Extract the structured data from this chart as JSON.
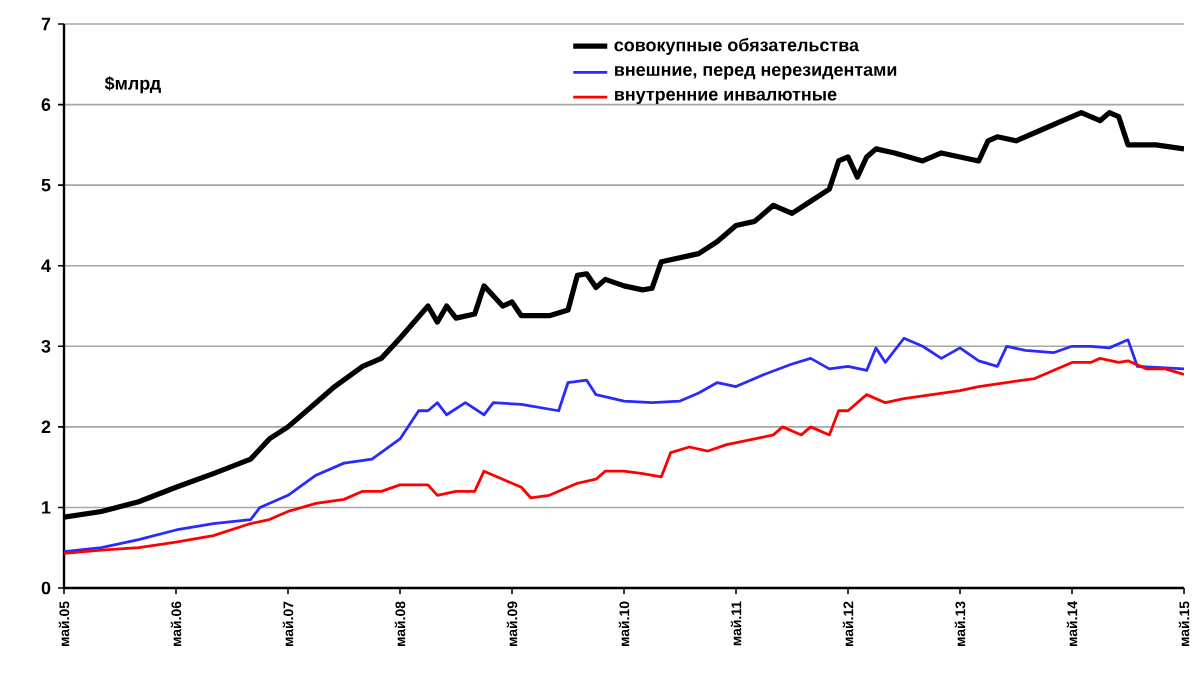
{
  "chart_data": {
    "type": "line",
    "ylabel": "$млрд",
    "ylim": [
      0,
      7
    ],
    "yticks": [
      0,
      1,
      2,
      3,
      4,
      5,
      6,
      7
    ],
    "xlim": [
      "2005-05",
      "2015-05"
    ],
    "xticks": [
      {
        "value": "2005-05",
        "label": "май.05"
      },
      {
        "value": "2006-05",
        "label": "май.06"
      },
      {
        "value": "2007-05",
        "label": "май.07"
      },
      {
        "value": "2008-05",
        "label": "май.08"
      },
      {
        "value": "2009-05",
        "label": "май.09"
      },
      {
        "value": "2010-05",
        "label": "май.10"
      },
      {
        "value": "2011-05",
        "label": "май.11"
      },
      {
        "value": "2012-05",
        "label": "май.12"
      },
      {
        "value": "2013-05",
        "label": "май.13"
      },
      {
        "value": "2014-05",
        "label": "май.14"
      },
      {
        "value": "2015-05",
        "label": "май.15"
      }
    ],
    "grid": "y",
    "legend": "top",
    "marker": "none",
    "line_style": "solid",
    "series": [
      {
        "name": "совокупные  обязательства",
        "color": "#000000",
        "x": [
          "2005-05",
          "2005-09",
          "2006-01",
          "2006-05",
          "2006-09",
          "2007-01",
          "2007-03",
          "2007-05",
          "2007-08",
          "2007-10",
          "2008-01",
          "2008-03",
          "2008-05",
          "2008-08",
          "2008-09",
          "2008-10",
          "2008-11",
          "2009-01",
          "2009-02",
          "2009-04",
          "2009-05",
          "2009-06",
          "2009-09",
          "2009-11",
          "2009-12",
          "2010-01",
          "2010-02",
          "2010-03",
          "2010-05",
          "2010-07",
          "2010-08",
          "2010-09",
          "2010-11",
          "2011-01",
          "2011-03",
          "2011-05",
          "2011-07",
          "2011-09",
          "2011-11",
          "2012-01",
          "2012-03",
          "2012-04",
          "2012-05",
          "2012-06",
          "2012-07",
          "2012-08",
          "2012-10",
          "2013-01",
          "2013-03",
          "2013-05",
          "2013-07",
          "2013-08",
          "2013-09",
          "2013-11",
          "2014-02",
          "2014-04",
          "2014-06",
          "2014-08",
          "2014-09",
          "2014-10",
          "2014-11",
          "2015-02",
          "2015-05"
        ],
        "values": [
          0.88,
          0.95,
          1.07,
          1.25,
          1.42,
          1.6,
          1.85,
          2.0,
          2.3,
          2.5,
          2.75,
          2.85,
          3.1,
          3.5,
          3.3,
          3.5,
          3.35,
          3.4,
          3.75,
          3.5,
          3.55,
          3.38,
          3.38,
          3.45,
          3.88,
          3.9,
          3.73,
          3.83,
          3.75,
          3.7,
          3.72,
          4.05,
          4.1,
          4.15,
          4.3,
          4.5,
          4.55,
          4.75,
          4.65,
          4.8,
          4.95,
          5.3,
          5.35,
          5.1,
          5.35,
          5.45,
          5.4,
          5.3,
          5.4,
          5.35,
          5.3,
          5.55,
          5.6,
          5.55,
          5.7,
          5.8,
          5.9,
          5.8,
          5.9,
          5.85,
          5.5,
          5.5,
          5.45
        ]
      },
      {
        "name": "внешние, перед нерезидентами",
        "color": "#2a2aff",
        "x": [
          "2005-05",
          "2005-09",
          "2006-01",
          "2006-05",
          "2006-09",
          "2007-01",
          "2007-02",
          "2007-05",
          "2007-08",
          "2007-11",
          "2008-02",
          "2008-05",
          "2008-07",
          "2008-08",
          "2008-09",
          "2008-10",
          "2008-12",
          "2009-02",
          "2009-03",
          "2009-06",
          "2009-10",
          "2009-11",
          "2010-01",
          "2010-02",
          "2010-05",
          "2010-08",
          "2010-11",
          "2011-01",
          "2011-03",
          "2011-05",
          "2011-08",
          "2011-11",
          "2012-01",
          "2012-03",
          "2012-05",
          "2012-07",
          "2012-08",
          "2012-09",
          "2012-11",
          "2013-01",
          "2013-03",
          "2013-05",
          "2013-07",
          "2013-09",
          "2013-10",
          "2013-12",
          "2014-03",
          "2014-05",
          "2014-07",
          "2014-09",
          "2014-11",
          "2014-12",
          "2015-05"
        ],
        "values": [
          0.45,
          0.5,
          0.6,
          0.72,
          0.8,
          0.85,
          1.0,
          1.15,
          1.4,
          1.55,
          1.6,
          1.85,
          2.2,
          2.2,
          2.3,
          2.15,
          2.3,
          2.15,
          2.3,
          2.28,
          2.2,
          2.55,
          2.58,
          2.4,
          2.32,
          2.3,
          2.32,
          2.42,
          2.55,
          2.5,
          2.65,
          2.78,
          2.85,
          2.72,
          2.75,
          2.7,
          2.98,
          2.8,
          3.1,
          3.0,
          2.85,
          2.98,
          2.82,
          2.75,
          3.0,
          2.95,
          2.92,
          3.0,
          3.0,
          2.98,
          3.08,
          2.75,
          2.72
        ]
      },
      {
        "name": "внутренние  инвалютные",
        "color": "#ff0000",
        "x": [
          "2005-05",
          "2005-09",
          "2006-01",
          "2006-05",
          "2006-09",
          "2007-01",
          "2007-03",
          "2007-05",
          "2007-08",
          "2007-11",
          "2008-01",
          "2008-03",
          "2008-05",
          "2008-08",
          "2008-09",
          "2008-11",
          "2009-01",
          "2009-02",
          "2009-04",
          "2009-06",
          "2009-07",
          "2009-09",
          "2009-12",
          "2010-02",
          "2010-03",
          "2010-05",
          "2010-07",
          "2010-09",
          "2010-10",
          "2010-12",
          "2011-02",
          "2011-04",
          "2011-07",
          "2011-09",
          "2011-10",
          "2011-12",
          "2012-01",
          "2012-03",
          "2012-04",
          "2012-05",
          "2012-07",
          "2012-09",
          "2012-11",
          "2013-02",
          "2013-05",
          "2013-07",
          "2013-10",
          "2014-01",
          "2014-03",
          "2014-05",
          "2014-07",
          "2014-08",
          "2014-10",
          "2014-11",
          "2015-01",
          "2015-03",
          "2015-05"
        ],
        "values": [
          0.43,
          0.47,
          0.5,
          0.57,
          0.65,
          0.8,
          0.85,
          0.95,
          1.05,
          1.1,
          1.2,
          1.2,
          1.28,
          1.28,
          1.15,
          1.2,
          1.2,
          1.45,
          1.35,
          1.25,
          1.12,
          1.15,
          1.3,
          1.35,
          1.45,
          1.45,
          1.42,
          1.38,
          1.68,
          1.75,
          1.7,
          1.78,
          1.85,
          1.9,
          2.0,
          1.9,
          2.0,
          1.9,
          2.2,
          2.2,
          2.4,
          2.3,
          2.35,
          2.4,
          2.45,
          2.5,
          2.55,
          2.6,
          2.7,
          2.8,
          2.8,
          2.85,
          2.8,
          2.82,
          2.72,
          2.72,
          2.65
        ]
      }
    ]
  }
}
